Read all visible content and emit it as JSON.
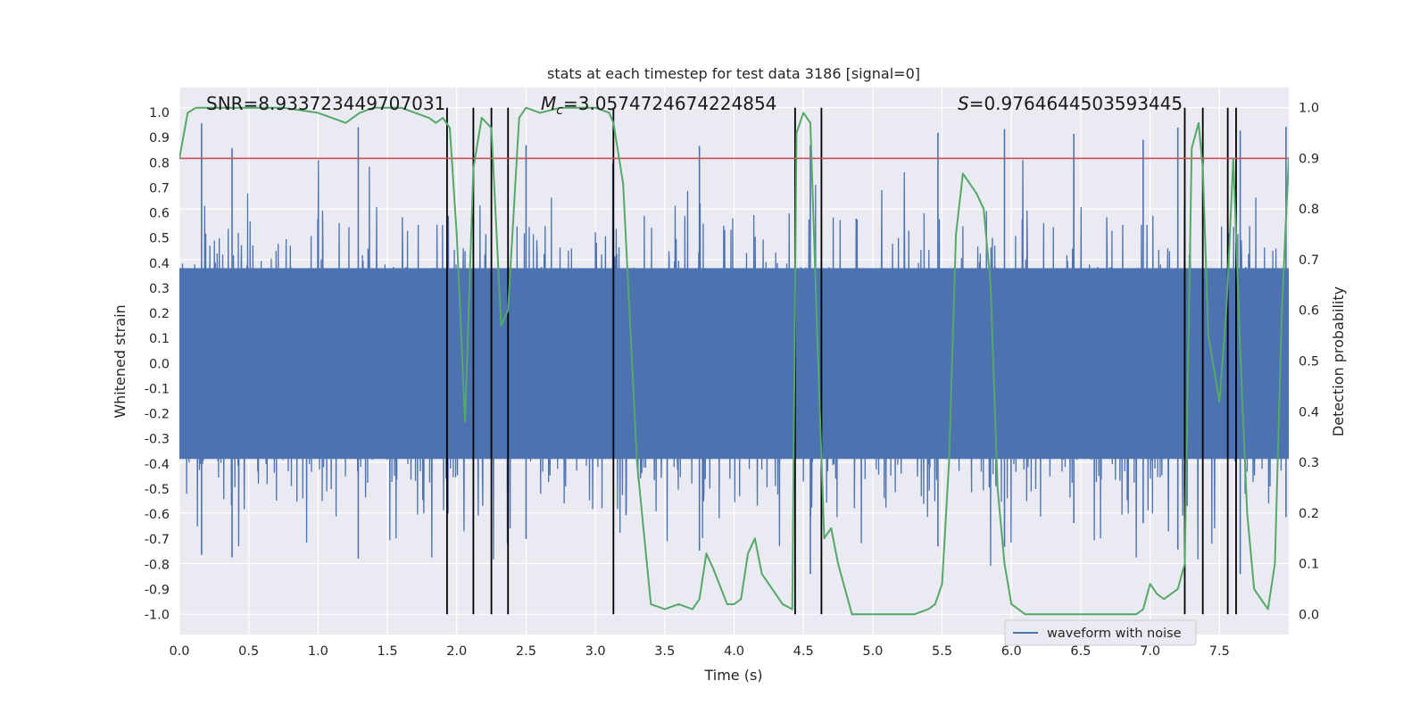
{
  "chart_data": {
    "type": "line",
    "title": "stats at each timestep for test data 3186 [signal=0]",
    "xlabel": "Time (s)",
    "ylabel_left": "Whitened strain",
    "ylabel_right": "Detection probability",
    "xlim": [
      0,
      8
    ],
    "ylim_left": [
      -1.08,
      1.1
    ],
    "ylim_right": [
      -0.04,
      1.04
    ],
    "x_ticks": [
      "0.0",
      "0.5",
      "1.0",
      "1.5",
      "2.0",
      "2.5",
      "3.0",
      "3.5",
      "4.0",
      "4.5",
      "5.0",
      "5.5",
      "6.0",
      "6.5",
      "7.0",
      "7.5"
    ],
    "y_left_ticks": [
      "-1.0",
      "-0.9",
      "-0.8",
      "-0.7",
      "-0.6",
      "-0.5",
      "-0.4",
      "-0.3",
      "-0.2",
      "-0.1",
      "0.0",
      "0.1",
      "0.2",
      "0.3",
      "0.4",
      "0.5",
      "0.6",
      "0.7",
      "0.8",
      "0.9",
      "1.0"
    ],
    "y_right_ticks": [
      "0.0",
      "0.1",
      "0.2",
      "0.3",
      "0.4",
      "0.5",
      "0.6",
      "0.7",
      "0.8",
      "0.9",
      "1.0"
    ],
    "grid": true,
    "legend": {
      "position": "lower-center-right",
      "entries": [
        "waveform with noise"
      ]
    },
    "annotations": {
      "snr": "SNR=8.933723449707031",
      "mc_symbol": "M",
      "mc_sub": "c",
      "mc_value": "=3.0574724674224854",
      "s_symbol": "S",
      "s_value": "=0.9764644503593445"
    },
    "threshold": 0.9,
    "colors": {
      "waveform": "#4c72b0",
      "probability": "#55a868",
      "threshold": "#c44e52",
      "trigger_lines": "#000000",
      "background": "#eaeaf2",
      "grid": "#ffffff"
    },
    "trigger_times": [
      1.93,
      2.12,
      2.25,
      2.37,
      3.13,
      4.44,
      4.63,
      7.25,
      7.38,
      7.56,
      7.62
    ],
    "waveform_envelope_typical": 0.4,
    "waveform_peak_times": [
      0.16,
      0.38,
      1.29,
      2.5,
      3.75,
      4.55,
      5.47,
      5.95,
      6.45,
      6.95,
      7.2,
      7.65,
      7.98
    ],
    "series": [
      {
        "name": "waveform with noise",
        "axis": "left",
        "note_render": "dense noise trace"
      },
      {
        "name": "",
        "axis": "right",
        "x": [
          0.0,
          0.06,
          0.12,
          0.25,
          0.5,
          0.75,
          1.0,
          1.1,
          1.2,
          1.3,
          1.4,
          1.5,
          1.6,
          1.7,
          1.8,
          1.85,
          1.9,
          1.95,
          2.0,
          2.06,
          2.12,
          2.18,
          2.25,
          2.32,
          2.37,
          2.45,
          2.5,
          2.6,
          2.75,
          3.0,
          3.1,
          3.13,
          3.2,
          3.3,
          3.4,
          3.5,
          3.6,
          3.7,
          3.75,
          3.8,
          3.85,
          3.95,
          4.0,
          4.05,
          4.1,
          4.15,
          4.2,
          4.25,
          4.35,
          4.42,
          4.45,
          4.5,
          4.55,
          4.6,
          4.65,
          4.7,
          4.75,
          4.85,
          4.95,
          5.1,
          5.3,
          5.4,
          5.45,
          5.5,
          5.55,
          5.6,
          5.65,
          5.7,
          5.75,
          5.8,
          5.85,
          5.9,
          5.95,
          6.0,
          6.1,
          6.3,
          6.6,
          6.9,
          6.95,
          7.0,
          7.05,
          7.1,
          7.15,
          7.2,
          7.25,
          7.3,
          7.35,
          7.38,
          7.42,
          7.5,
          7.55,
          7.6,
          7.65,
          7.7,
          7.75,
          7.8,
          7.85,
          7.9,
          7.95,
          8.0
        ],
        "values": [
          0.9,
          0.99,
          1.0,
          1.0,
          1.0,
          1.0,
          0.99,
          0.98,
          0.97,
          0.99,
          1.0,
          1.0,
          1.0,
          0.99,
          0.98,
          0.97,
          0.98,
          0.96,
          0.75,
          0.38,
          0.88,
          0.98,
          0.96,
          0.57,
          0.6,
          0.98,
          1.0,
          0.99,
          1.0,
          1.0,
          0.99,
          0.97,
          0.85,
          0.3,
          0.02,
          0.01,
          0.02,
          0.01,
          0.03,
          0.12,
          0.09,
          0.02,
          0.02,
          0.03,
          0.12,
          0.15,
          0.08,
          0.06,
          0.02,
          0.01,
          0.95,
          0.99,
          0.97,
          0.55,
          0.15,
          0.17,
          0.1,
          0.0,
          0.0,
          0.0,
          0.0,
          0.01,
          0.02,
          0.06,
          0.3,
          0.75,
          0.87,
          0.85,
          0.83,
          0.8,
          0.65,
          0.25,
          0.1,
          0.02,
          0.0,
          0.0,
          0.0,
          0.0,
          0.01,
          0.06,
          0.04,
          0.03,
          0.04,
          0.05,
          0.1,
          0.92,
          0.97,
          0.88,
          0.55,
          0.42,
          0.6,
          0.9,
          0.52,
          0.2,
          0.05,
          0.03,
          0.01,
          0.1,
          0.6,
          0.9
        ]
      },
      {
        "name": "",
        "axis": "right",
        "type": "hline",
        "value": 0.9
      }
    ]
  }
}
